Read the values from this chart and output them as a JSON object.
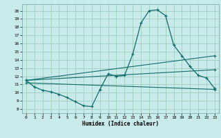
{
  "xlabel": "Humidex (Indice chaleur)",
  "xlim": [
    -0.5,
    23.5
  ],
  "ylim": [
    7.5,
    20.8
  ],
  "yticks": [
    8,
    9,
    10,
    11,
    12,
    13,
    14,
    15,
    16,
    17,
    18,
    19,
    20
  ],
  "xticks": [
    0,
    1,
    2,
    3,
    4,
    5,
    6,
    7,
    8,
    9,
    10,
    11,
    12,
    13,
    14,
    15,
    16,
    17,
    18,
    19,
    20,
    21,
    22,
    23
  ],
  "background_color": "#c8eaea",
  "grid_color": "#a0ccbb",
  "line_color": "#0d6b6b",
  "series_main": {
    "x": [
      0,
      1,
      2,
      3,
      4,
      5,
      6,
      7,
      8,
      9,
      10,
      11,
      12,
      13,
      14,
      15,
      16,
      17,
      18,
      19,
      20,
      21,
      22,
      23
    ],
    "y": [
      11.5,
      10.7,
      10.3,
      10.1,
      9.8,
      9.4,
      8.9,
      8.4,
      8.3,
      10.4,
      12.3,
      12.0,
      12.1,
      14.7,
      18.5,
      20.0,
      20.1,
      19.4,
      15.8,
      14.5,
      13.2,
      12.1,
      11.8,
      10.5
    ]
  },
  "series_lines": [
    {
      "x": [
        0,
        23
      ],
      "y": [
        11.5,
        14.5
      ]
    },
    {
      "x": [
        0,
        23
      ],
      "y": [
        11.5,
        12.8
      ]
    },
    {
      "x": [
        0,
        23
      ],
      "y": [
        11.2,
        10.4
      ]
    }
  ]
}
